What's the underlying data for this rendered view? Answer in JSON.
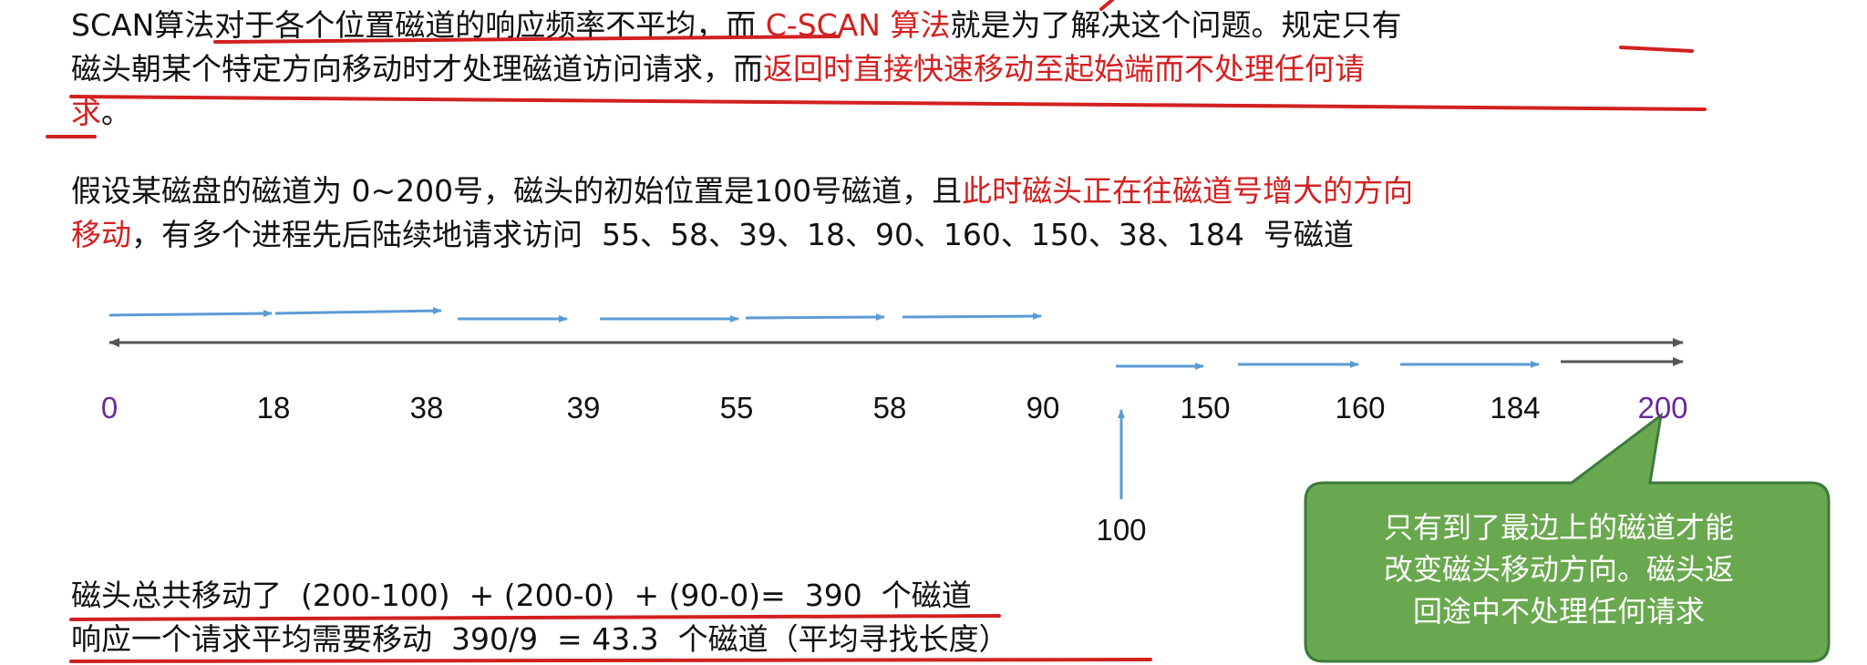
{
  "intro": {
    "segments": [
      {
        "text": "SCAN算法对于各个位置磁道的响应频率不平均，而 ",
        "color": "black"
      },
      {
        "text": "C-SCAN 算法",
        "color": "red"
      },
      {
        "text": "就是为了解决这个问题。规定只有",
        "color": "black"
      },
      {
        "text": "\n",
        "color": "break"
      },
      {
        "text": "磁头朝某个特定方向移动时才处理磁道访问请求，而",
        "color": "black"
      },
      {
        "text": "返回时直接快速移动至起始端而不处理任何请",
        "color": "red"
      },
      {
        "text": "\n",
        "color": "break"
      },
      {
        "text": "求",
        "color": "red"
      },
      {
        "text": "。",
        "color": "black"
      }
    ]
  },
  "scenario": {
    "segments": [
      {
        "text": "假设某磁盘的磁道为 0~200号，磁头的初始位置是100号磁道，且",
        "color": "black"
      },
      {
        "text": "此时磁头正在往磁道号增大的方向",
        "color": "red"
      },
      {
        "text": "\n",
        "color": "break"
      },
      {
        "text": "移动",
        "color": "red"
      },
      {
        "text": "，有多个进程先后陆续地请求访问  55、58、39、18、90、160、150、38、184  号磁道",
        "color": "black"
      }
    ]
  },
  "diagram": {
    "ticks": [
      {
        "label": "0",
        "color": "purple"
      },
      {
        "label": "18",
        "color": "black"
      },
      {
        "label": "38",
        "color": "black"
      },
      {
        "label": "39",
        "color": "black"
      },
      {
        "label": "55",
        "color": "black"
      },
      {
        "label": "58",
        "color": "black"
      },
      {
        "label": "90",
        "color": "black"
      },
      {
        "label": "150",
        "color": "black"
      },
      {
        "label": "160",
        "color": "black"
      },
      {
        "label": "184",
        "color": "black"
      },
      {
        "label": "200",
        "color": "purple"
      }
    ],
    "initial_head_label": "100",
    "colors": {
      "axis": "#555555",
      "arrow": "#5b9bd5",
      "return_arrow": "#555555",
      "callout_fill": "#6aa84f",
      "callout_border": "#3d7a3d",
      "underline": "#d32020"
    }
  },
  "callout": {
    "lines": [
      "只有到了最边上的磁道才能",
      "改变磁头移动方向。磁头返",
      "回途中不处理任何请求"
    ]
  },
  "summary": {
    "line1": "磁头总共移动了  (200-100)  + (200-0)  + (90-0)=  390  个磁道",
    "line2": "响应一个请求平均需要移动  390/9  = 43.3  个磁道（平均寻找长度）"
  }
}
